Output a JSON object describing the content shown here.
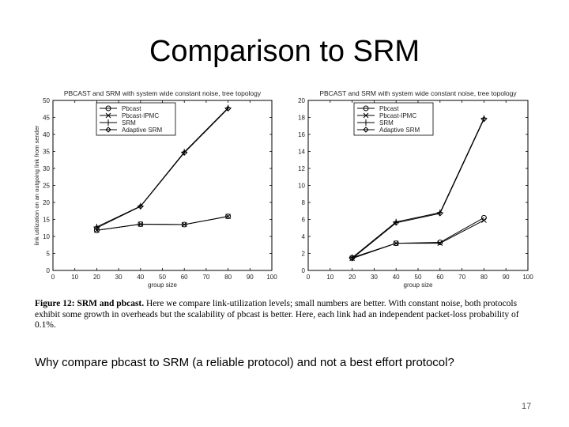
{
  "slide": {
    "title": "Comparison to SRM",
    "caption_label": "Figure 12: SRM and pbcast.",
    "caption_text": "Here we compare link-utilization levels; small numbers are better. With constant noise, both protocols exhibit some growth in overheads but the scalability of pbcast is better. Here, each link had an independent packet-loss probability of 0.1%.",
    "question": "Why compare pbcast to SRM (a reliable protocol) and not a best effort protocol?",
    "page_number": "17"
  },
  "chart_data": [
    {
      "type": "line",
      "title": "PBCAST and SRM with system wide constant noise, tree topology",
      "xlabel": "group size",
      "ylabel": "link utilization on an outgoing link from sender",
      "xlim": [
        0,
        100
      ],
      "ylim": [
        0,
        50
      ],
      "xticks": [
        0,
        10,
        20,
        30,
        40,
        50,
        60,
        70,
        80,
        90,
        100
      ],
      "yticks": [
        0,
        5,
        10,
        15,
        20,
        25,
        30,
        35,
        40,
        45,
        50
      ],
      "grid": false,
      "legend_position": "top-left",
      "series": [
        {
          "name": "Pbcast",
          "marker": "circle",
          "x": [
            20,
            40,
            60,
            80
          ],
          "y": [
            11.8,
            13.6,
            13.5,
            15.9
          ]
        },
        {
          "name": "Pbcast-IPMC",
          "marker": "x",
          "x": [
            20,
            40,
            60,
            80
          ],
          "y": [
            11.8,
            13.6,
            13.5,
            15.9
          ]
        },
        {
          "name": "SRM",
          "marker": "plus",
          "x": [
            20,
            40,
            60,
            80
          ],
          "y": [
            12.8,
            18.9,
            34.8,
            47.8
          ]
        },
        {
          "name": "Adaptive SRM",
          "marker": "diamond",
          "x": [
            20,
            40,
            60,
            80
          ],
          "y": [
            12.5,
            18.8,
            34.6,
            47.6
          ]
        }
      ]
    },
    {
      "type": "line",
      "title": "PBCAST and SRM with system wide constant noise, tree topology",
      "xlabel": "group size",
      "ylabel": "",
      "xlim": [
        0,
        100
      ],
      "ylim": [
        0,
        20
      ],
      "xticks": [
        0,
        10,
        20,
        30,
        40,
        50,
        60,
        70,
        80,
        90,
        100
      ],
      "yticks": [
        0,
        2,
        4,
        6,
        8,
        10,
        12,
        14,
        16,
        18,
        20
      ],
      "grid": false,
      "legend_position": "top-right",
      "series": [
        {
          "name": "Pbcast",
          "marker": "circle",
          "x": [
            20,
            40,
            60,
            80
          ],
          "y": [
            1.5,
            3.2,
            3.3,
            6.2
          ]
        },
        {
          "name": "Pbcast-IPMC",
          "marker": "x",
          "x": [
            20,
            40,
            60,
            80
          ],
          "y": [
            1.4,
            3.2,
            3.2,
            5.9
          ]
        },
        {
          "name": "SRM",
          "marker": "plus",
          "x": [
            20,
            40,
            60,
            80
          ],
          "y": [
            1.5,
            5.7,
            6.8,
            17.9
          ]
        },
        {
          "name": "Adaptive SRM",
          "marker": "diamond",
          "x": [
            20,
            40,
            60,
            80
          ],
          "y": [
            1.4,
            5.6,
            6.7,
            17.8
          ]
        }
      ]
    }
  ]
}
